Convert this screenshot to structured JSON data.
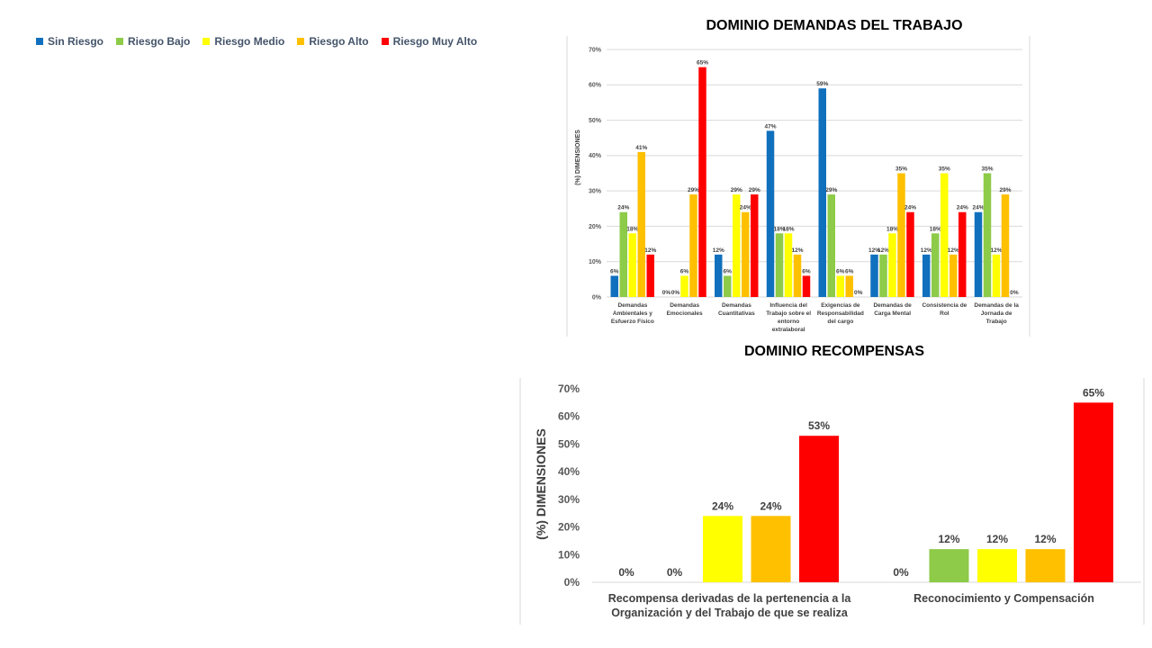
{
  "legend": {
    "items": [
      {
        "label": "Sin Riesgo",
        "color": "#1170BE"
      },
      {
        "label": "Riesgo Bajo",
        "color": "#8DCB48"
      },
      {
        "label": "Riesgo Medio",
        "color": "#FFFF00"
      },
      {
        "label": "Riesgo Alto",
        "color": "#FFC000"
      },
      {
        "label": "Riesgo Muy Alto",
        "color": "#FF0000"
      }
    ]
  },
  "chart_data": [
    {
      "type": "bar",
      "title": "DOMINIO DEMANDAS DEL TRABAJO",
      "ylabel": "(%) DIMENSIONES",
      "xlabel": "",
      "ylim": [
        0,
        70
      ],
      "yticks": [
        "0%",
        "10%",
        "20%",
        "30%",
        "40%",
        "50%",
        "60%",
        "70%"
      ],
      "grid": true,
      "categories": [
        [
          "Demandas",
          "Ambientales y",
          "Esfuerzo Físico"
        ],
        [
          "Demandas",
          "Emocionales"
        ],
        [
          "Demandas",
          "Cuantitativas"
        ],
        [
          "Influencia del",
          "Trabajo sobre el",
          "entorno",
          "extralaboral"
        ],
        [
          "Exigencias de",
          "Responsabilidad",
          "del cargo"
        ],
        [
          "Demandas de",
          "Carga Mental"
        ],
        [
          "Consistencia de",
          "Rol"
        ],
        [
          "Demandas de la",
          "Jornada de",
          "Trabajo"
        ]
      ],
      "series": [
        {
          "name": "Sin Riesgo",
          "values": [
            6,
            0,
            12,
            47,
            59,
            12,
            12,
            24
          ],
          "labels": [
            "6%",
            "0%",
            "12%",
            "47%",
            "59%",
            "12%",
            "12%",
            "24%"
          ]
        },
        {
          "name": "Riesgo Bajo",
          "values": [
            24,
            0,
            6,
            18,
            29,
            12,
            18,
            35
          ],
          "labels": [
            "24%",
            "0%",
            "6%",
            "18%",
            "29%",
            "12%",
            "18%",
            "35%"
          ]
        },
        {
          "name": "Riesgo Medio",
          "values": [
            18,
            6,
            29,
            18,
            6,
            18,
            35,
            12
          ],
          "labels": [
            "18%",
            "6%",
            "29%",
            "18%",
            "6%",
            "18%",
            "35%",
            "12%"
          ]
        },
        {
          "name": "Riesgo Alto",
          "values": [
            41,
            29,
            24,
            12,
            6,
            35,
            12,
            29
          ],
          "labels": [
            "41%",
            "29%",
            "24%",
            "12%",
            "6%",
            "35%",
            "12%",
            "29%"
          ]
        },
        {
          "name": "Riesgo Muy Alto",
          "values": [
            12,
            65,
            29,
            6,
            0,
            24,
            24,
            0
          ],
          "labels": [
            "12%",
            "65%",
            "29%",
            "6%",
            "0%",
            "24%",
            "24%",
            "0%"
          ]
        }
      ]
    },
    {
      "type": "bar",
      "title": "DOMINIO RECOMPENSAS",
      "ylabel": "(%) DIMENSIONES",
      "xlabel": "",
      "ylim": [
        0,
        70
      ],
      "yticks": [
        "0%",
        "10%",
        "20%",
        "30%",
        "40%",
        "50%",
        "60%",
        "70%"
      ],
      "grid": false,
      "categories": [
        [
          "Recompensa derivadas de la pertenencia a la",
          "Organización y del Trabajo de que se realiza"
        ],
        [
          "Reconocimiento y Compensación"
        ]
      ],
      "series": [
        {
          "name": "Sin Riesgo",
          "values": [
            0,
            0
          ],
          "labels": [
            "0%",
            "0%"
          ]
        },
        {
          "name": "Riesgo Bajo",
          "values": [
            0,
            12
          ],
          "labels": [
            "0%",
            "12%"
          ]
        },
        {
          "name": "Riesgo Medio",
          "values": [
            24,
            12
          ],
          "labels": [
            "24%",
            "12%"
          ]
        },
        {
          "name": "Riesgo Alto",
          "values": [
            24,
            12
          ],
          "labels": [
            "24%",
            "12%"
          ]
        },
        {
          "name": "Riesgo Muy Alto",
          "values": [
            53,
            65
          ],
          "labels": [
            "53%",
            "65%"
          ]
        }
      ]
    }
  ]
}
